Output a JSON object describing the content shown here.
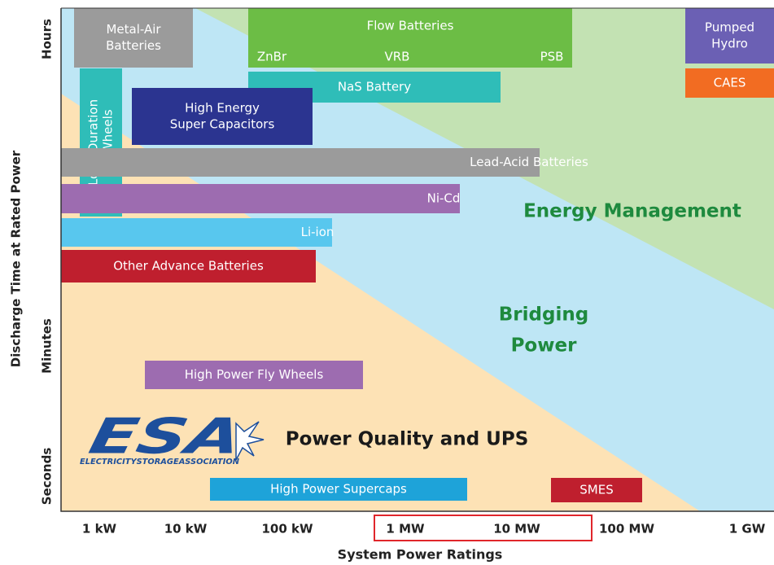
{
  "y_axis": {
    "title": "Discharge Time at Rated Power",
    "ticks": [
      "Hours",
      "Minutes",
      "Seconds"
    ]
  },
  "x_axis": {
    "title": "System Power Ratings",
    "ticks": [
      "1 kW",
      "10 kW",
      "100 kW",
      "1 MW",
      "10 MW",
      "100 MW",
      "1 GW"
    ]
  },
  "regions": {
    "energy": "Energy Management",
    "bridging": [
      "Bridging",
      "Power"
    ],
    "quality": "Power Quality and UPS"
  },
  "logo": {
    "mark": "ESA",
    "name": "ELECTRICITYSTORAGEASSOCIATION"
  },
  "boxes": [
    {
      "lines": [
        "Metal-Air",
        "Batteries"
      ],
      "color": "#9b9b9b"
    },
    {
      "lines": [
        "Flow Batteries"
      ],
      "sub": [
        "ZnBr",
        "VRB",
        "PSB"
      ],
      "color": "#6cbd45"
    },
    {
      "lines": [
        "NaS Battery"
      ],
      "color": "#2fbdb8"
    },
    {
      "lines": [
        "Pumped",
        "Hydro"
      ],
      "color": "#6b60b4"
    },
    {
      "lines": [
        "CAES"
      ],
      "color": "#f26c22"
    },
    {
      "lines": [
        "High Energy",
        "Super Capacitors"
      ],
      "color": "#2b3490"
    },
    {
      "lines": [
        "Long Duration",
        "Fly Wheels"
      ],
      "color": "#2fbdb8"
    },
    {
      "lines": [
        "Lead-Acid Batteries"
      ],
      "color": "#9b9b9b"
    },
    {
      "lines": [
        "Ni-Cd"
      ],
      "color": "#9d6cb0"
    },
    {
      "lines": [
        "Li-ion"
      ],
      "color": "#58c7ee"
    },
    {
      "lines": [
        "Other Advance Batteries"
      ],
      "color": "#bf1f2e"
    },
    {
      "lines": [
        "High Power Fly Wheels"
      ],
      "color": "#9d6cb0"
    },
    {
      "lines": [
        "High Power Supercaps"
      ],
      "color": "#1ea3d9"
    },
    {
      "lines": [
        "SMES"
      ],
      "color": "#bf1f2e"
    }
  ]
}
